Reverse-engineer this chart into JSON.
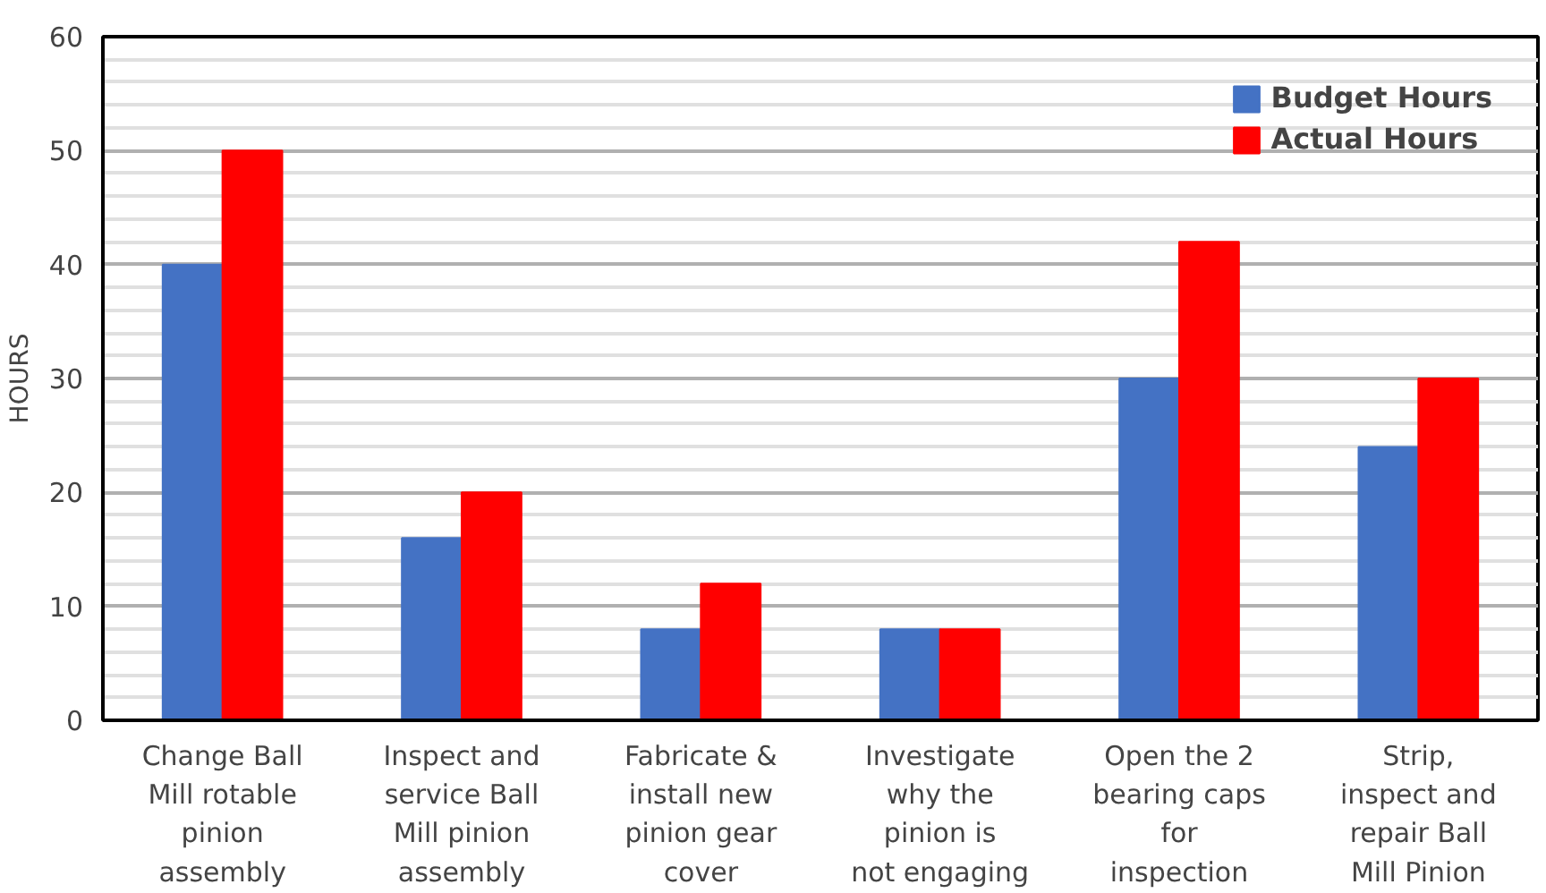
{
  "chart_data": {
    "type": "bar",
    "ylabel": "HOURS",
    "categories": [
      "Change Ball Mill rotable pinion assembly",
      "Inspect and service Ball Mill pinion assembly",
      "Fabricate & install new pinion gear cover",
      "Investigate why the pinion is not engaging",
      "Open the 2 bearing caps for inspection",
      "Strip, inspect and repair Ball Mill Pinion"
    ],
    "series": [
      {
        "name": "Budget Hours",
        "color": "#4472c4",
        "values": [
          40,
          16,
          8,
          8,
          30,
          24
        ]
      },
      {
        "name": "Actual Hours",
        "color": "#ff0000",
        "values": [
          50,
          20,
          12,
          8,
          42,
          30
        ]
      }
    ],
    "ylim": [
      0,
      60
    ],
    "yticks": [
      0,
      10,
      20,
      30,
      40,
      50,
      60
    ],
    "grid": "y",
    "legend": "top right"
  }
}
